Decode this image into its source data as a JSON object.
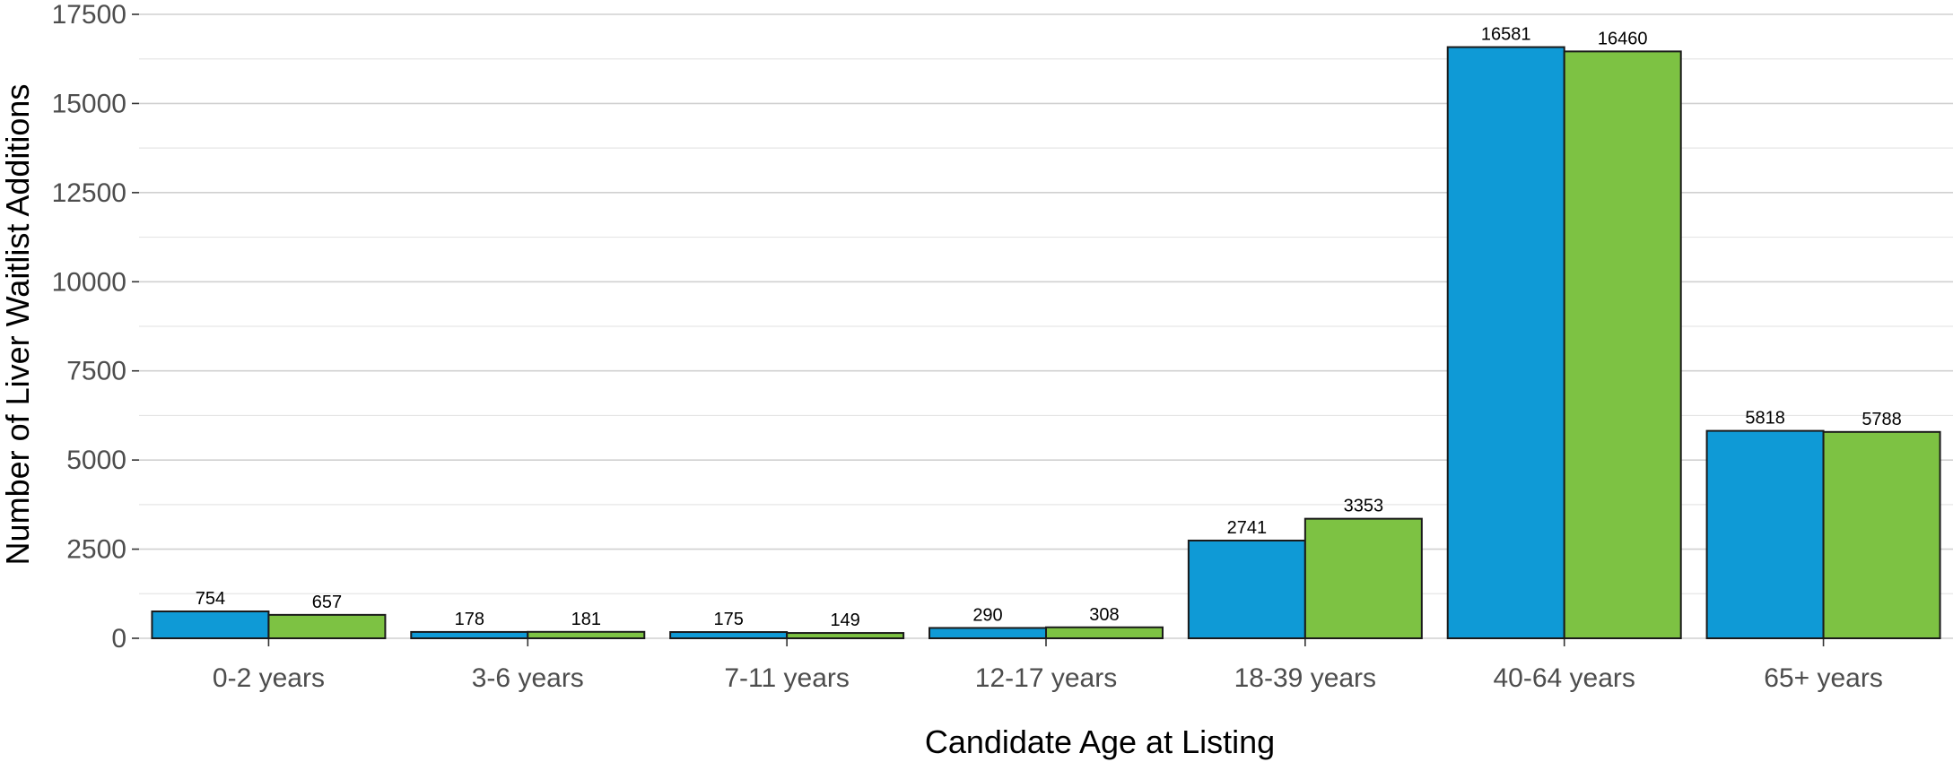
{
  "chart_data": {
    "type": "bar",
    "title": "",
    "xlabel": "Candidate Age at Listing",
    "ylabel": "Number of Liver Waitlist Additions",
    "categories": [
      "0-2 years",
      "3-6 years",
      "7-11 years",
      "12-17 years",
      "18-39 years",
      "40-64 years",
      "65+ years"
    ],
    "series": [
      {
        "color": "#0f9ad6",
        "values": [
          754,
          178,
          175,
          290,
          2741,
          16581,
          5818
        ]
      },
      {
        "color": "#7dc243",
        "values": [
          657,
          181,
          149,
          308,
          3353,
          16460,
          5788
        ]
      }
    ],
    "ylim": [
      0,
      17500
    ],
    "yticks": [
      0,
      2500,
      5000,
      7500,
      10000,
      12500,
      15000,
      17500
    ],
    "grid": true,
    "legend": "none"
  }
}
